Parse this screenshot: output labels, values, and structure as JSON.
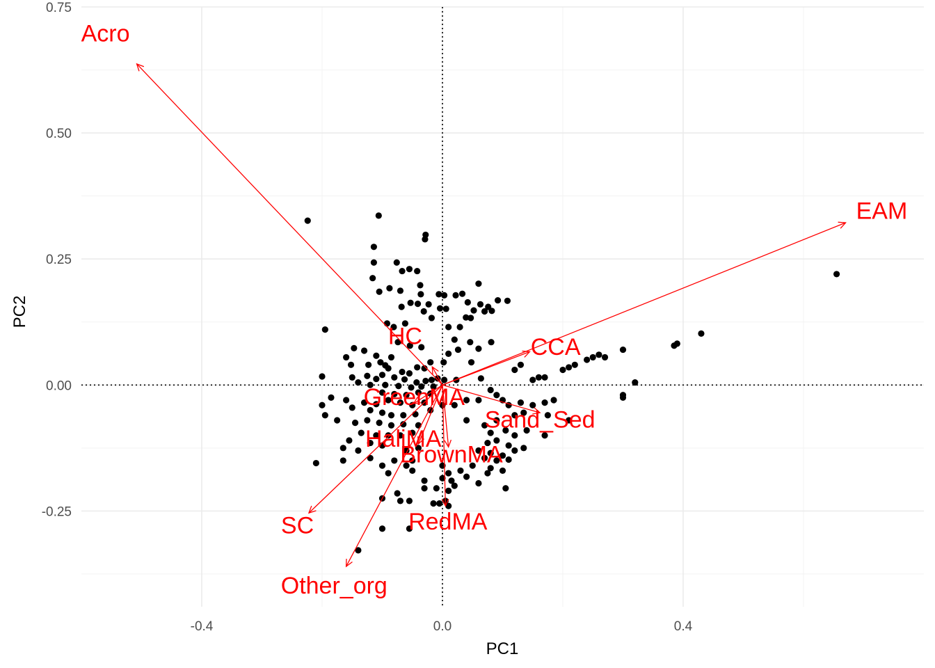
{
  "chart_data": {
    "type": "scatter",
    "title": "",
    "xlabel": "PC1",
    "ylabel": "PC2",
    "xlim": [
      -0.6,
      0.8
    ],
    "ylim": [
      -0.44,
      0.75
    ],
    "x_ticks": [
      -0.4,
      0.0,
      0.4
    ],
    "x_tick_labels": [
      "-0.4",
      "0.0",
      "0.4"
    ],
    "y_ticks": [
      -0.25,
      0.0,
      0.25,
      0.5,
      0.75
    ],
    "y_tick_labels": [
      "-0.25",
      "0.00",
      "0.25",
      "0.50",
      "0.75"
    ],
    "grid": true,
    "zero_lines": true,
    "point_color": "#000000",
    "vector_color": "#ff0000",
    "points": [
      [
        -0.224,
        0.326
      ],
      [
        -0.106,
        0.336
      ],
      [
        -0.028,
        0.298
      ],
      [
        -0.029,
        0.289
      ],
      [
        -0.114,
        0.274
      ],
      [
        -0.114,
        0.243
      ],
      [
        -0.076,
        0.243
      ],
      [
        -0.055,
        0.23
      ],
      [
        -0.067,
        0.226
      ],
      [
        -0.042,
        0.226
      ],
      [
        -0.116,
        0.212
      ],
      [
        -0.037,
        0.198
      ],
      [
        -0.088,
        0.192
      ],
      [
        -0.105,
        0.185
      ],
      [
        -0.07,
        0.187
      ],
      [
        -0.036,
        0.18
      ],
      [
        -0.006,
        0.18
      ],
      [
        0.003,
        0.178
      ],
      [
        0.022,
        0.178
      ],
      [
        0.033,
        0.181
      ],
      [
        0.06,
        0.201
      ],
      [
        0.042,
        0.164
      ],
      [
        0.063,
        0.16
      ],
      [
        0.092,
        0.168
      ],
      [
        0.108,
        0.167
      ],
      [
        -0.053,
        0.163
      ],
      [
        -0.041,
        0.161
      ],
      [
        -0.023,
        0.16
      ],
      [
        0.076,
        0.155
      ],
      [
        0.082,
        0.147
      ],
      [
        0.07,
        0.146
      ],
      [
        0.052,
        0.148
      ],
      [
        -0.068,
        0.155
      ],
      [
        -0.031,
        0.146
      ],
      [
        -0.004,
        0.152
      ],
      [
        0.006,
        0.151
      ],
      [
        0.039,
        0.134
      ],
      [
        0.047,
        0.133
      ],
      [
        -0.018,
        0.133
      ],
      [
        -0.092,
        0.122
      ],
      [
        -0.062,
        0.122
      ],
      [
        -0.081,
        0.115
      ],
      [
        0.01,
        0.115
      ],
      [
        0.029,
        0.115
      ],
      [
        -0.195,
        0.11
      ],
      [
        -0.147,
        0.073
      ],
      [
        -0.13,
        0.068
      ],
      [
        -0.11,
        0.058
      ],
      [
        -0.085,
        0.055
      ],
      [
        -0.074,
        0.085
      ],
      [
        -0.054,
        0.078
      ],
      [
        -0.035,
        0.075
      ],
      [
        0.02,
        0.09
      ],
      [
        0.046,
        0.085
      ],
      [
        0.081,
        0.085
      ],
      [
        0.026,
        0.07
      ],
      [
        0.06,
        0.072
      ],
      [
        0.01,
        0.062
      ],
      [
        -0.16,
        0.055
      ],
      [
        -0.103,
        0.045
      ],
      [
        -0.123,
        0.04
      ],
      [
        -0.095,
        0.039
      ],
      [
        -0.02,
        0.045
      ],
      [
        0.002,
        0.045
      ],
      [
        0.048,
        0.045
      ],
      [
        -0.152,
        0.04
      ],
      [
        -0.09,
        0.033
      ],
      [
        -0.067,
        0.026
      ],
      [
        -0.055,
        0.023
      ],
      [
        -0.042,
        0.035
      ],
      [
        -0.03,
        0.033
      ],
      [
        -0.1,
        0.02
      ],
      [
        -0.08,
        0.015
      ],
      [
        -0.2,
        0.017
      ],
      [
        -0.15,
        0.015
      ],
      [
        -0.125,
        0.018
      ],
      [
        -0.11,
        0.012
      ],
      [
        -0.063,
        0.011
      ],
      [
        -0.043,
        0.005
      ],
      [
        -0.028,
        0.008
      ],
      [
        -0.018,
        0.01
      ],
      [
        -0.008,
        0.013
      ],
      [
        0.003,
        0.01
      ],
      [
        0.023,
        0.01
      ],
      [
        0.064,
        0.013
      ],
      [
        -0.14,
        0.005
      ],
      [
        -0.12,
        0.0
      ],
      [
        -0.095,
        0.0
      ],
      [
        -0.073,
        -0.002
      ],
      [
        -0.052,
        -0.005
      ],
      [
        -0.035,
        -0.003
      ],
      [
        -0.015,
        -0.003
      ],
      [
        -0.1,
        -0.015
      ],
      [
        -0.08,
        -0.018
      ],
      [
        -0.06,
        -0.02
      ],
      [
        -0.04,
        -0.015
      ],
      [
        -0.02,
        -0.017
      ],
      [
        -0.185,
        -0.025
      ],
      [
        -0.16,
        -0.03
      ],
      [
        -0.13,
        -0.035
      ],
      [
        -0.11,
        -0.038
      ],
      [
        -0.09,
        -0.03
      ],
      [
        -0.07,
        -0.035
      ],
      [
        -0.05,
        -0.04
      ],
      [
        -0.03,
        -0.035
      ],
      [
        -0.2,
        -0.04
      ],
      [
        -0.15,
        -0.045
      ],
      [
        -0.12,
        -0.05
      ],
      [
        -0.1,
        -0.055
      ],
      [
        -0.085,
        -0.06
      ],
      [
        -0.065,
        -0.06
      ],
      [
        -0.045,
        -0.058
      ],
      [
        -0.02,
        -0.05
      ],
      [
        0.0,
        -0.04
      ],
      [
        0.02,
        -0.04
      ],
      [
        0.04,
        -0.03
      ],
      [
        0.06,
        -0.03
      ],
      [
        0.08,
        -0.01
      ],
      [
        0.09,
        -0.02
      ],
      [
        0.1,
        -0.03
      ],
      [
        0.11,
        -0.04
      ],
      [
        0.13,
        -0.035
      ],
      [
        0.15,
        -0.04
      ],
      [
        0.17,
        -0.035
      ],
      [
        0.185,
        -0.03
      ],
      [
        -0.195,
        -0.06
      ],
      [
        -0.175,
        -0.07
      ],
      [
        -0.145,
        -0.075
      ],
      [
        -0.125,
        -0.07
      ],
      [
        -0.105,
        -0.075
      ],
      [
        -0.085,
        -0.08
      ],
      [
        -0.065,
        -0.078
      ],
      [
        -0.04,
        -0.08
      ],
      [
        0.04,
        -0.07
      ],
      [
        0.07,
        -0.08
      ],
      [
        0.09,
        -0.07
      ],
      [
        0.12,
        -0.06
      ],
      [
        0.135,
        -0.055
      ],
      [
        0.175,
        -0.06
      ],
      [
        0.21,
        -0.07
      ],
      [
        -0.135,
        -0.095
      ],
      [
        -0.11,
        -0.1
      ],
      [
        -0.09,
        -0.1
      ],
      [
        -0.07,
        -0.1
      ],
      [
        -0.05,
        -0.095
      ],
      [
        0.08,
        -0.095
      ],
      [
        0.105,
        -0.09
      ],
      [
        0.12,
        -0.1
      ],
      [
        0.14,
        -0.09
      ],
      [
        0.17,
        -0.1
      ],
      [
        -0.155,
        -0.11
      ],
      [
        -0.12,
        -0.115
      ],
      [
        -0.1,
        -0.12
      ],
      [
        0.075,
        -0.115
      ],
      [
        0.09,
        -0.11
      ],
      [
        0.11,
        -0.12
      ],
      [
        0.135,
        -0.125
      ],
      [
        -0.165,
        -0.125
      ],
      [
        -0.14,
        -0.13
      ],
      [
        -0.06,
        -0.13
      ],
      [
        -0.04,
        -0.125
      ],
      [
        0.06,
        -0.13
      ],
      [
        0.08,
        -0.135
      ],
      [
        0.1,
        -0.14
      ],
      [
        0.12,
        -0.13
      ],
      [
        -0.12,
        -0.145
      ],
      [
        -0.08,
        -0.15
      ],
      [
        -0.05,
        -0.15
      ],
      [
        0.07,
        -0.145
      ],
      [
        0.09,
        -0.15
      ],
      [
        0.11,
        -0.148
      ],
      [
        -0.21,
        -0.155
      ],
      [
        -0.165,
        -0.15
      ],
      [
        -0.1,
        -0.16
      ],
      [
        -0.06,
        -0.16
      ],
      [
        0.0,
        -0.16
      ],
      [
        0.05,
        -0.16
      ],
      [
        0.08,
        -0.165
      ],
      [
        0.1,
        -0.17
      ],
      [
        -0.09,
        -0.175
      ],
      [
        -0.05,
        -0.17
      ],
      [
        0.01,
        -0.175
      ],
      [
        0.03,
        -0.17
      ],
      [
        0.04,
        -0.182
      ],
      [
        0.075,
        -0.175
      ],
      [
        0.0,
        -0.185
      ],
      [
        0.015,
        -0.19
      ],
      [
        -0.03,
        -0.19
      ],
      [
        0.02,
        -0.2
      ],
      [
        0.06,
        -0.195
      ],
      [
        0.105,
        -0.205
      ],
      [
        -0.03,
        -0.205
      ],
      [
        -0.01,
        -0.205
      ],
      [
        0.01,
        -0.21
      ],
      [
        -0.1,
        -0.225
      ],
      [
        -0.075,
        -0.215
      ],
      [
        -0.055,
        -0.23
      ],
      [
        -0.015,
        -0.235
      ],
      [
        -0.005,
        -0.235
      ],
      [
        0.005,
        -0.23
      ],
      [
        -0.07,
        -0.23
      ],
      [
        -0.1,
        -0.285
      ],
      [
        -0.14,
        -0.328
      ],
      [
        -0.055,
        -0.285
      ],
      [
        0.01,
        -0.24
      ],
      [
        0.15,
        0.01
      ],
      [
        0.16,
        0.015
      ],
      [
        0.17,
        0.015
      ],
      [
        0.2,
        0.03
      ],
      [
        0.21,
        0.035
      ],
      [
        0.22,
        0.04
      ],
      [
        0.24,
        0.05
      ],
      [
        0.25,
        0.055
      ],
      [
        0.26,
        0.06
      ],
      [
        0.27,
        0.055
      ],
      [
        0.3,
        0.07
      ],
      [
        0.32,
        0.005
      ],
      [
        0.3,
        -0.02
      ],
      [
        0.3,
        -0.025
      ],
      [
        0.385,
        0.078
      ],
      [
        0.39,
        0.082
      ],
      [
        0.43,
        0.102
      ],
      [
        0.655,
        0.22
      ],
      [
        0.12,
        0.03
      ],
      [
        0.13,
        0.04
      ]
    ],
    "vectors": [
      {
        "label": "Acro",
        "x": -0.508,
        "y": 0.637,
        "label_x": -0.56,
        "label_y": 0.698
      },
      {
        "label": "EAM",
        "x": 0.67,
        "y": 0.322,
        "label_x": 0.73,
        "label_y": 0.346
      },
      {
        "label": "HC",
        "x": -0.017,
        "y": 0.036,
        "label_x": -0.062,
        "label_y": 0.098
      },
      {
        "label": "CCA",
        "x": 0.145,
        "y": 0.066,
        "label_x": 0.188,
        "label_y": 0.076
      },
      {
        "label": "GreenMA",
        "x": -0.048,
        "y": -0.037,
        "label_x": -0.047,
        "label_y": -0.023
      },
      {
        "label": "Sand_Sed",
        "x": 0.162,
        "y": -0.055,
        "label_x": 0.162,
        "label_y": -0.068
      },
      {
        "label": "HaliMA",
        "x": -0.04,
        "y": -0.117,
        "label_x": -0.065,
        "label_y": -0.106
      },
      {
        "label": "BrownMA",
        "x": 0.01,
        "y": -0.123,
        "label_x": 0.015,
        "label_y": -0.137
      },
      {
        "label": "RedMA",
        "x": 0.005,
        "y": -0.24,
        "label_x": 0.009,
        "label_y": -0.27
      },
      {
        "label": "SC",
        "x": -0.222,
        "y": -0.254,
        "label_x": -0.241,
        "label_y": -0.278
      },
      {
        "label": "Other_org",
        "x": -0.16,
        "y": -0.36,
        "label_x": -0.18,
        "label_y": -0.397
      }
    ]
  }
}
